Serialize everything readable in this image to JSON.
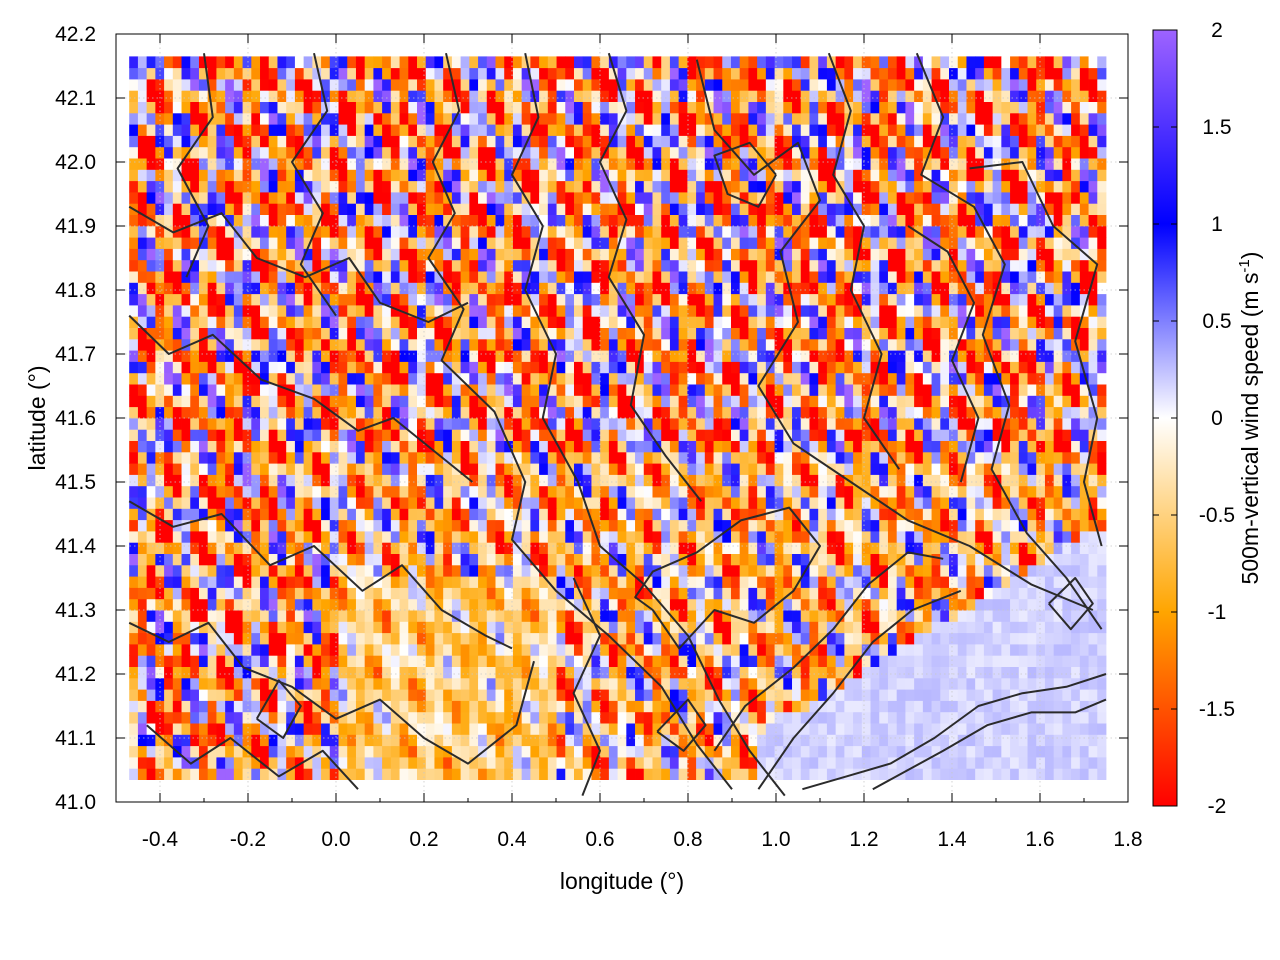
{
  "chart_data": {
    "type": "heatmap",
    "title": "",
    "xlabel": "longitude (°)",
    "ylabel": "latitude (°)",
    "xlim": [
      -0.5,
      1.8
    ],
    "ylim": [
      41.0,
      42.2
    ],
    "x_ticks": [
      "-0.4",
      "-0.2",
      "0.0",
      "0.2",
      "0.4",
      "0.6",
      "0.8",
      "1.0",
      "1.2",
      "1.4",
      "1.6",
      "1.8"
    ],
    "x_tick_values": [
      -0.4,
      -0.2,
      0.0,
      0.2,
      0.4,
      0.6,
      0.8,
      1.0,
      1.2,
      1.4,
      1.6,
      1.8
    ],
    "y_ticks": [
      "41.0",
      "41.1",
      "41.2",
      "41.3",
      "41.4",
      "41.5",
      "41.6",
      "41.7",
      "41.8",
      "41.9",
      "42.0",
      "42.1",
      "42.2"
    ],
    "y_tick_values": [
      41.0,
      41.1,
      41.2,
      41.3,
      41.4,
      41.5,
      41.6,
      41.7,
      41.8,
      41.9,
      42.0,
      42.1,
      42.2
    ],
    "grid": true,
    "data_extent": {
      "lon": [
        -0.47,
        1.75
      ],
      "lat": [
        41.035,
        42.165
      ]
    },
    "colorbar": {
      "label_main": "500m-vertical wind speed (m s",
      "label_sup": "-1",
      "label_close": ")",
      "range": [
        -2,
        2
      ],
      "ticks": [
        "2",
        "1.5",
        "1",
        "0.5",
        "0",
        "-0.5",
        "-1",
        "-1.5",
        "-2"
      ],
      "tick_values": [
        2,
        1.5,
        1,
        0.5,
        0,
        -0.5,
        -1,
        -1.5,
        -2
      ],
      "colors": [
        "#ff0000",
        "#ffa500",
        "#ffffff",
        "#0000ff",
        "#9e63ff"
      ],
      "color_stops": [
        -2,
        -1,
        0,
        1,
        2
      ]
    },
    "field_description": "vertical wind speed at 500 m, diverging colormap, with black terrain contour lines overlaid",
    "contours_lonlat": [
      [
        [
          0.25,
          42.17
        ],
        [
          0.28,
          42.08
        ],
        [
          0.22,
          42.0
        ],
        [
          0.27,
          41.92
        ],
        [
          0.21,
          41.85
        ],
        [
          0.29,
          41.77
        ],
        [
          0.24,
          41.69
        ],
        [
          0.36,
          41.61
        ],
        [
          0.43,
          41.5
        ],
        [
          0.4,
          41.41
        ],
        [
          0.5,
          41.33
        ],
        [
          0.62,
          41.26
        ],
        [
          0.74,
          41.18
        ],
        [
          0.82,
          41.09
        ],
        [
          0.9,
          41.02
        ]
      ],
      [
        [
          0.43,
          42.17
        ],
        [
          0.46,
          42.07
        ],
        [
          0.4,
          41.98
        ],
        [
          0.47,
          41.9
        ],
        [
          0.43,
          41.8
        ],
        [
          0.5,
          41.7
        ],
        [
          0.47,
          41.6
        ],
        [
          0.55,
          41.5
        ],
        [
          0.6,
          41.4
        ],
        [
          0.7,
          41.34
        ],
        [
          0.8,
          41.26
        ],
        [
          0.87,
          41.16
        ],
        [
          0.94,
          41.08
        ],
        [
          1.02,
          41.01
        ]
      ],
      [
        [
          0.82,
          42.16
        ],
        [
          0.86,
          42.05
        ],
        [
          0.95,
          41.98
        ],
        [
          1.05,
          42.03
        ],
        [
          1.1,
          41.94
        ],
        [
          1.01,
          41.86
        ],
        [
          1.05,
          41.75
        ],
        [
          0.96,
          41.65
        ],
        [
          1.04,
          41.56
        ],
        [
          1.17,
          41.5
        ],
        [
          1.3,
          41.44
        ],
        [
          1.44,
          41.4
        ],
        [
          1.58,
          41.34
        ],
        [
          1.72,
          41.3
        ]
      ],
      [
        [
          1.32,
          42.17
        ],
        [
          1.38,
          42.07
        ],
        [
          1.33,
          41.98
        ],
        [
          1.45,
          41.93
        ],
        [
          1.52,
          41.84
        ],
        [
          1.47,
          41.73
        ],
        [
          1.53,
          41.62
        ],
        [
          1.49,
          41.52
        ],
        [
          1.57,
          41.42
        ],
        [
          1.66,
          41.35
        ],
        [
          1.74,
          41.27
        ]
      ],
      [
        [
          1.44,
          41.99
        ],
        [
          1.56,
          42.0
        ],
        [
          1.63,
          41.9
        ],
        [
          1.73,
          41.84
        ],
        [
          1.68,
          41.72
        ],
        [
          1.73,
          41.6
        ],
        [
          1.7,
          41.5
        ],
        [
          1.74,
          41.4
        ]
      ],
      [
        [
          -0.47,
          41.93
        ],
        [
          -0.37,
          41.89
        ],
        [
          -0.26,
          41.92
        ],
        [
          -0.18,
          41.85
        ],
        [
          -0.07,
          41.82
        ],
        [
          0.03,
          41.85
        ],
        [
          0.1,
          41.78
        ],
        [
          0.21,
          41.75
        ],
        [
          0.3,
          41.78
        ]
      ],
      [
        [
          -0.47,
          41.76
        ],
        [
          -0.38,
          41.7
        ],
        [
          -0.28,
          41.73
        ],
        [
          -0.17,
          41.66
        ],
        [
          -0.05,
          41.63
        ],
        [
          0.05,
          41.58
        ],
        [
          0.13,
          41.6
        ],
        [
          0.22,
          41.55
        ],
        [
          0.31,
          41.5
        ]
      ],
      [
        [
          -0.47,
          41.47
        ],
        [
          -0.37,
          41.43
        ],
        [
          -0.26,
          41.45
        ],
        [
          -0.15,
          41.37
        ],
        [
          -0.05,
          41.4
        ],
        [
          0.06,
          41.33
        ],
        [
          0.15,
          41.37
        ],
        [
          0.24,
          41.3
        ],
        [
          0.34,
          41.26
        ],
        [
          0.4,
          41.24
        ]
      ],
      [
        [
          -0.47,
          41.28
        ],
        [
          -0.38,
          41.25
        ],
        [
          -0.29,
          41.28
        ],
        [
          -0.21,
          41.21
        ],
        [
          -0.1,
          41.18
        ],
        [
          0.0,
          41.13
        ],
        [
          0.1,
          41.16
        ],
        [
          0.2,
          41.1
        ],
        [
          0.3,
          41.06
        ],
        [
          0.41,
          41.12
        ],
        [
          0.45,
          41.22
        ]
      ],
      [
        [
          -0.43,
          41.12
        ],
        [
          -0.33,
          41.06
        ],
        [
          -0.24,
          41.1
        ],
        [
          -0.13,
          41.04
        ],
        [
          -0.03,
          41.08
        ],
        [
          0.05,
          41.02
        ]
      ],
      [
        [
          0.54,
          41.35
        ],
        [
          0.6,
          41.26
        ],
        [
          0.54,
          41.17
        ],
        [
          0.6,
          41.08
        ],
        [
          0.56,
          41.01
        ]
      ],
      [
        [
          0.72,
          41.3
        ],
        [
          0.78,
          41.24
        ],
        [
          0.86,
          41.3
        ],
        [
          0.95,
          41.28
        ],
        [
          1.04,
          41.33
        ],
        [
          1.1,
          41.4
        ],
        [
          1.03,
          41.46
        ],
        [
          0.92,
          41.44
        ],
        [
          0.82,
          41.39
        ],
        [
          0.72,
          41.36
        ],
        [
          0.68,
          41.32
        ],
        [
          0.72,
          41.3
        ]
      ],
      [
        [
          0.86,
          41.08
        ],
        [
          0.93,
          41.15
        ],
        [
          1.04,
          41.21
        ],
        [
          1.13,
          41.27
        ],
        [
          1.21,
          41.34
        ],
        [
          1.3,
          41.39
        ],
        [
          1.38,
          41.38
        ]
      ],
      [
        [
          0.96,
          41.02
        ],
        [
          1.04,
          41.1
        ],
        [
          1.13,
          41.17
        ],
        [
          1.22,
          41.25
        ],
        [
          1.31,
          41.3
        ],
        [
          1.42,
          41.33
        ]
      ],
      [
        [
          1.06,
          41.02
        ],
        [
          1.16,
          41.04
        ],
        [
          1.26,
          41.06
        ],
        [
          1.36,
          41.1
        ],
        [
          1.46,
          41.15
        ],
        [
          1.56,
          41.17
        ],
        [
          1.66,
          41.18
        ],
        [
          1.75,
          41.2
        ]
      ],
      [
        [
          1.22,
          41.02
        ],
        [
          1.3,
          41.05
        ],
        [
          1.38,
          41.08
        ],
        [
          1.48,
          41.12
        ],
        [
          1.58,
          41.14
        ],
        [
          1.68,
          41.14
        ],
        [
          1.75,
          41.16
        ]
      ],
      [
        [
          -0.3,
          42.17
        ],
        [
          -0.28,
          42.07
        ],
        [
          -0.36,
          41.99
        ],
        [
          -0.29,
          41.9
        ],
        [
          -0.34,
          41.82
        ]
      ],
      [
        [
          -0.05,
          42.17
        ],
        [
          -0.02,
          42.08
        ],
        [
          -0.1,
          42.0
        ],
        [
          -0.03,
          41.92
        ],
        [
          -0.08,
          41.84
        ],
        [
          0.0,
          41.76
        ]
      ],
      [
        [
          0.62,
          42.17
        ],
        [
          0.66,
          42.08
        ],
        [
          0.6,
          42.0
        ],
        [
          0.66,
          41.91
        ],
        [
          0.62,
          41.82
        ],
        [
          0.7,
          41.73
        ],
        [
          0.67,
          41.62
        ],
        [
          0.75,
          41.54
        ],
        [
          0.83,
          41.47
        ]
      ],
      [
        [
          1.12,
          42.17
        ],
        [
          1.17,
          42.08
        ],
        [
          1.13,
          41.98
        ],
        [
          1.2,
          41.9
        ],
        [
          1.17,
          41.8
        ],
        [
          1.24,
          41.7
        ],
        [
          1.2,
          41.6
        ],
        [
          1.28,
          41.52
        ]
      ],
      [
        [
          1.0,
          41.98
        ],
        [
          0.94,
          42.03
        ],
        [
          0.86,
          42.01
        ],
        [
          0.89,
          41.95
        ],
        [
          0.96,
          41.93
        ],
        [
          1.0,
          41.98
        ]
      ],
      [
        [
          1.62,
          41.31
        ],
        [
          1.67,
          41.27
        ],
        [
          1.72,
          41.31
        ],
        [
          1.68,
          41.35
        ],
        [
          1.62,
          41.31
        ]
      ],
      [
        [
          0.73,
          41.11
        ],
        [
          0.79,
          41.08
        ],
        [
          0.84,
          41.12
        ],
        [
          0.8,
          41.16
        ],
        [
          0.73,
          41.11
        ]
      ],
      [
        [
          -0.18,
          41.13
        ],
        [
          -0.12,
          41.1
        ],
        [
          -0.08,
          41.15
        ],
        [
          -0.13,
          41.19
        ],
        [
          -0.18,
          41.13
        ]
      ],
      [
        [
          1.3,
          41.9
        ],
        [
          1.39,
          41.86
        ],
        [
          1.45,
          41.78
        ],
        [
          1.4,
          41.69
        ],
        [
          1.46,
          41.6
        ],
        [
          1.42,
          41.5
        ]
      ]
    ]
  }
}
